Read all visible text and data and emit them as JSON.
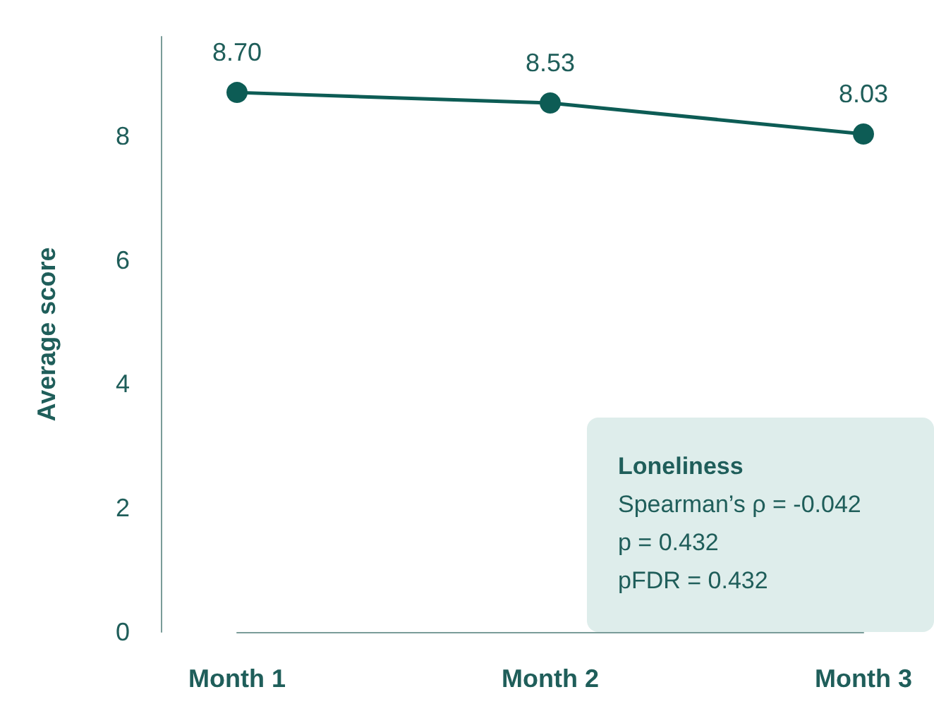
{
  "chart_data": {
    "type": "line",
    "ylabel": "Average score",
    "categories": [
      "Month 1",
      "Month 2",
      "Month 3"
    ],
    "series": [
      {
        "color": "#0d5c55",
        "values": [
          8.7,
          8.53,
          8.03
        ],
        "value_labels": [
          "8.70",
          "8.53",
          "8.03"
        ]
      }
    ],
    "ylim": [
      0,
      9.6
    ],
    "yticks": [
      0,
      2,
      4,
      6,
      8
    ],
    "grid": false,
    "marker": "circle",
    "line_style": "solid",
    "annotations": [
      "Loneliness",
      "Spearman’s ρ = -0.042",
      "p = 0.432",
      "pFDR = 0.432"
    ]
  }
}
